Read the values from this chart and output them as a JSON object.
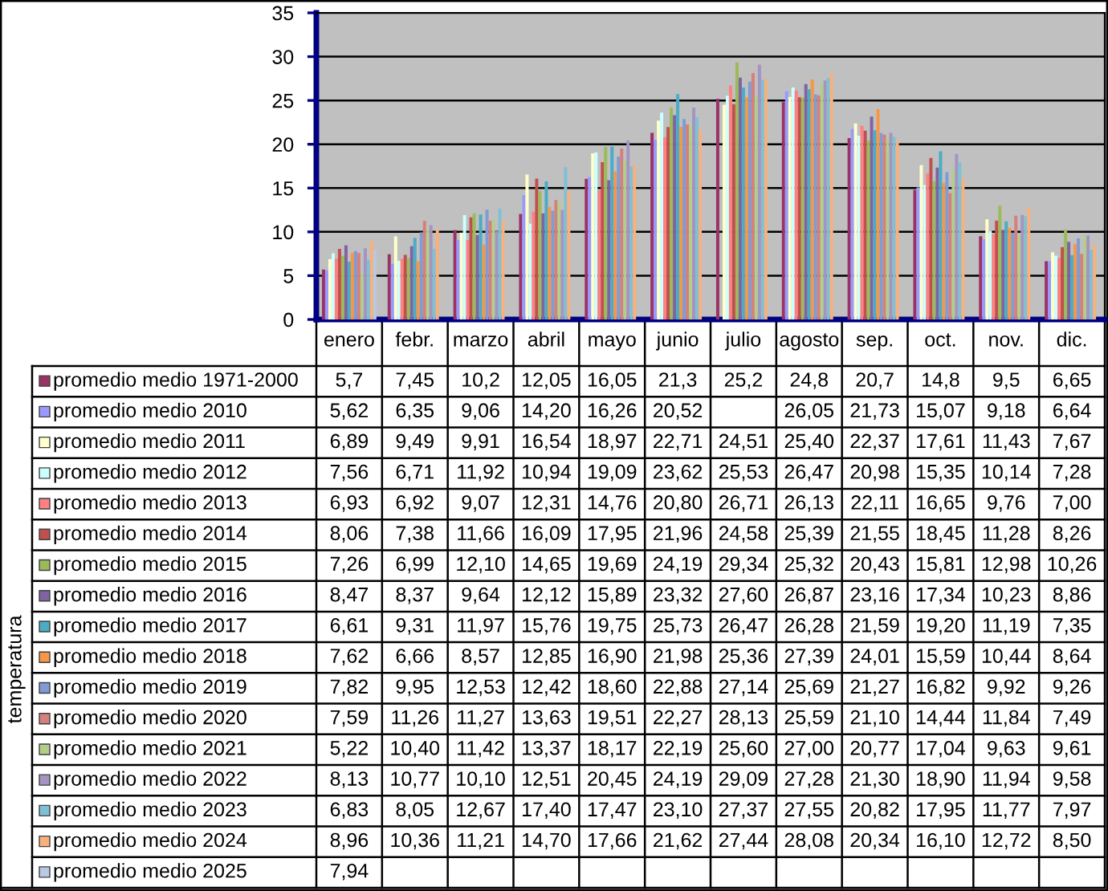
{
  "chart_data": {
    "type": "bar",
    "annotations": [
      "temperatura"
    ],
    "categories": [
      "enero",
      "febr.",
      "marzo",
      "abril",
      "mayo",
      "junio",
      "julio",
      "agosto",
      "sep.",
      "oct.",
      "nov.",
      "dic."
    ],
    "ylim": [
      0,
      35
    ],
    "yticks": [
      0,
      5,
      10,
      15,
      20,
      25,
      30,
      35
    ],
    "grid": "y",
    "legend": "bottom",
    "series": [
      {
        "name": "promedio medio 1971-2000",
        "color": "#993366",
        "values": [
          5.7,
          7.45,
          10.2,
          12.05,
          16.05,
          21.3,
          25.2,
          24.8,
          20.7,
          14.8,
          9.5,
          6.65
        ],
        "value_labels": [
          "5,7",
          "7,45",
          "10,2",
          "12,05",
          "16,05",
          "21,3",
          "25,2",
          "24,8",
          "20,7",
          "14,8",
          "9,5",
          "6,65"
        ]
      },
      {
        "name": "promedio medio 2010",
        "color": "#9999ff",
        "values": [
          5.62,
          6.35,
          9.06,
          14.2,
          16.26,
          20.52,
          null,
          26.05,
          21.73,
          15.07,
          9.18,
          6.64
        ],
        "value_labels": [
          "5,62",
          "6,35",
          "9,06",
          "14,20",
          "16,26",
          "20,52",
          null,
          "26,05",
          "21,73",
          "15,07",
          "9,18",
          "6,64"
        ]
      },
      {
        "name": "promedio medio 2011",
        "color": "#ffffcc",
        "values": [
          6.89,
          9.49,
          9.91,
          16.54,
          18.97,
          22.71,
          24.51,
          25.4,
          22.37,
          17.61,
          11.43,
          7.67
        ],
        "value_labels": [
          "6,89",
          "9,49",
          "9,91",
          "16,54",
          "18,97",
          "22,71",
          "24,51",
          "25,40",
          "22,37",
          "17,61",
          "11,43",
          "7,67"
        ]
      },
      {
        "name": "promedio medio 2012",
        "color": "#ccffff",
        "values": [
          7.56,
          6.71,
          11.92,
          10.94,
          19.09,
          23.62,
          25.53,
          26.47,
          20.98,
          15.35,
          10.14,
          7.28
        ],
        "value_labels": [
          "7,56",
          "6,71",
          "11,92",
          "10,94",
          "19,09",
          "23,62",
          "25,53",
          "26,47",
          "20,98",
          "15,35",
          "10,14",
          "7,28"
        ]
      },
      {
        "name": "promedio medio 2013",
        "color": "#ff8080",
        "values": [
          6.93,
          6.92,
          9.07,
          12.31,
          14.76,
          20.8,
          26.71,
          26.13,
          22.11,
          16.65,
          9.76,
          7.0
        ],
        "value_labels": [
          "6,93",
          "6,92",
          "9,07",
          "12,31",
          "14,76",
          "20,80",
          "26,71",
          "26,13",
          "22,11",
          "16,65",
          "9,76",
          "7,00"
        ]
      },
      {
        "name": "promedio medio 2014",
        "color": "#c0504d",
        "values": [
          8.06,
          7.38,
          11.66,
          16.09,
          17.95,
          21.96,
          24.58,
          25.39,
          21.55,
          18.45,
          11.28,
          8.26
        ],
        "value_labels": [
          "8,06",
          "7,38",
          "11,66",
          "16,09",
          "17,95",
          "21,96",
          "24,58",
          "25,39",
          "21,55",
          "18,45",
          "11,28",
          "8,26"
        ]
      },
      {
        "name": "promedio medio 2015",
        "color": "#9bbb59",
        "values": [
          7.26,
          6.99,
          12.1,
          14.65,
          19.69,
          24.19,
          29.34,
          25.32,
          20.43,
          15.81,
          12.98,
          10.26
        ],
        "value_labels": [
          "7,26",
          "6,99",
          "12,10",
          "14,65",
          "19,69",
          "24,19",
          "29,34",
          "25,32",
          "20,43",
          "15,81",
          "12,98",
          "10,26"
        ]
      },
      {
        "name": "promedio medio 2016",
        "color": "#8064a2",
        "values": [
          8.47,
          8.37,
          9.64,
          12.12,
          15.89,
          23.32,
          27.6,
          26.87,
          23.16,
          17.34,
          10.23,
          8.86
        ],
        "value_labels": [
          "8,47",
          "8,37",
          "9,64",
          "12,12",
          "15,89",
          "23,32",
          "27,60",
          "26,87",
          "23,16",
          "17,34",
          "10,23",
          "8,86"
        ]
      },
      {
        "name": "promedio medio 2017",
        "color": "#4bacc6",
        "values": [
          6.61,
          9.31,
          11.97,
          15.76,
          19.75,
          25.73,
          26.47,
          26.28,
          21.59,
          19.2,
          11.19,
          7.35
        ],
        "value_labels": [
          "6,61",
          "9,31",
          "11,97",
          "15,76",
          "19,75",
          "25,73",
          "26,47",
          "26,28",
          "21,59",
          "19,20",
          "11,19",
          "7,35"
        ]
      },
      {
        "name": "promedio medio 2018",
        "color": "#f79646",
        "values": [
          7.62,
          6.66,
          8.57,
          12.85,
          16.9,
          21.98,
          25.36,
          27.39,
          24.01,
          15.59,
          10.44,
          8.64
        ],
        "value_labels": [
          "7,62",
          "6,66",
          "8,57",
          "12,85",
          "16,90",
          "21,98",
          "25,36",
          "27,39",
          "24,01",
          "15,59",
          "10,44",
          "8,64"
        ]
      },
      {
        "name": "promedio medio 2019",
        "color": "#7f9cd4",
        "values": [
          7.82,
          9.95,
          12.53,
          12.42,
          18.6,
          22.88,
          27.14,
          25.69,
          21.27,
          16.82,
          9.92,
          9.26
        ],
        "value_labels": [
          "7,82",
          "9,95",
          "12,53",
          "12,42",
          "18,60",
          "22,88",
          "27,14",
          "25,69",
          "21,27",
          "16,82",
          "9,92",
          "9,26"
        ]
      },
      {
        "name": "promedio medio 2020",
        "color": "#d4807d",
        "values": [
          7.59,
          11.26,
          11.27,
          13.63,
          19.51,
          22.27,
          28.13,
          25.59,
          21.1,
          14.44,
          11.84,
          7.49
        ],
        "value_labels": [
          "7,59",
          "11,26",
          "11,27",
          "13,63",
          "19,51",
          "22,27",
          "28,13",
          "25,59",
          "21,10",
          "14,44",
          "11,84",
          "7,49"
        ]
      },
      {
        "name": "promedio medio 2021",
        "color": "#b3ce8a",
        "values": [
          5.22,
          10.4,
          11.42,
          13.37,
          18.17,
          22.19,
          25.6,
          27.0,
          20.77,
          17.04,
          9.63,
          9.61
        ],
        "value_labels": [
          "5,22",
          "10,40",
          "11,42",
          "13,37",
          "18,17",
          "22,19",
          "25,60",
          "27,00",
          "20,77",
          "17,04",
          "9,63",
          "9,61"
        ]
      },
      {
        "name": "promedio medio 2022",
        "color": "#a594c2",
        "values": [
          8.13,
          10.77,
          10.1,
          12.51,
          20.45,
          24.19,
          29.09,
          27.28,
          21.3,
          18.9,
          11.94,
          9.58
        ],
        "value_labels": [
          "8,13",
          "10,77",
          "10,10",
          "12,51",
          "20,45",
          "24,19",
          "29,09",
          "27,28",
          "21,30",
          "18,90",
          "11,94",
          "9,58"
        ]
      },
      {
        "name": "promedio medio 2023",
        "color": "#7fc1d4",
        "values": [
          6.83,
          8.05,
          12.67,
          17.4,
          17.47,
          23.1,
          27.37,
          27.55,
          20.82,
          17.95,
          11.77,
          7.97
        ],
        "value_labels": [
          "6,83",
          "8,05",
          "12,67",
          "17,40",
          "17,47",
          "23,10",
          "27,37",
          "27,55",
          "20,82",
          "17,95",
          "11,77",
          "7,97"
        ]
      },
      {
        "name": "promedio medio 2024",
        "color": "#f9b07d",
        "values": [
          8.96,
          10.36,
          11.21,
          14.7,
          17.66,
          21.62,
          27.44,
          28.08,
          20.34,
          16.1,
          12.72,
          8.5
        ],
        "value_labels": [
          "8,96",
          "10,36",
          "11,21",
          "14,70",
          "17,66",
          "21,62",
          "27,44",
          "28,08",
          "20,34",
          "16,10",
          "12,72",
          "8,50"
        ]
      },
      {
        "name": "promedio medio 2025",
        "color": "#b9c8e3",
        "values": [
          7.94,
          null,
          null,
          null,
          null,
          null,
          null,
          null,
          null,
          null,
          null,
          null
        ],
        "value_labels": [
          "7,94",
          null,
          null,
          null,
          null,
          null,
          null,
          null,
          null,
          null,
          null,
          null
        ]
      }
    ]
  }
}
